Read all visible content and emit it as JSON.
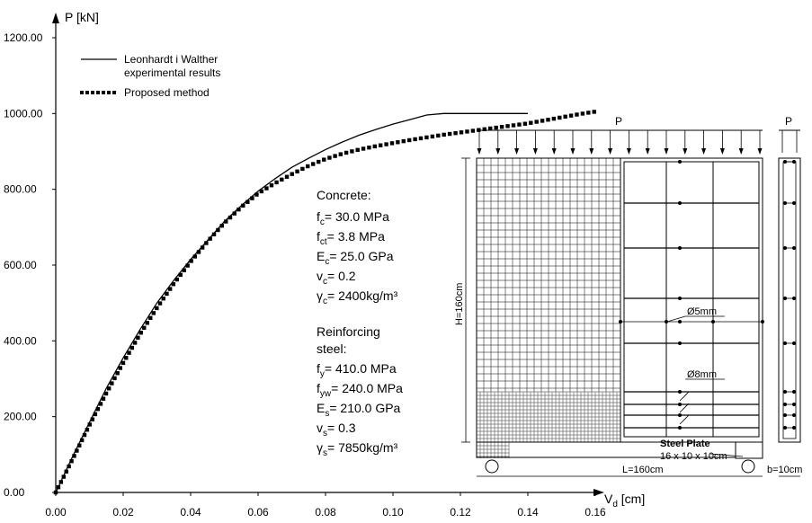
{
  "chart_data": {
    "type": "line",
    "ylabel": "P [kN]",
    "xlabel": "V",
    "xlabel_sub": "d",
    "xlabel_unit": " [cm]",
    "xlim": [
      0,
      0.16
    ],
    "ylim": [
      0,
      1200
    ],
    "x_ticks": [
      "0.00",
      "0.02",
      "0.04",
      "0.06",
      "0.08",
      "0.10",
      "0.12",
      "0.14",
      "0.16"
    ],
    "y_ticks": [
      "0.00",
      "200.00",
      "400.00",
      "600.00",
      "800.00",
      "1000.00",
      "1200.00"
    ],
    "grid": false,
    "legend": {
      "position": "top-left",
      "entries": [
        {
          "line1": "Leonhardt i Walther",
          "line2": "experimental results",
          "style": "solid"
        },
        {
          "line1": "Proposed method",
          "line2": "",
          "style": "dotted"
        }
      ]
    },
    "series": [
      {
        "name": "Leonhardt i Walther experimental results",
        "style": "solid",
        "x": [
          0,
          0.005,
          0.01,
          0.015,
          0.02,
          0.025,
          0.03,
          0.035,
          0.04,
          0.045,
          0.05,
          0.055,
          0.06,
          0.065,
          0.07,
          0.075,
          0.08,
          0.085,
          0.09,
          0.095,
          0.1,
          0.105,
          0.11,
          0.115,
          0.12,
          0.13,
          0.14
        ],
        "y": [
          0,
          95,
          185,
          275,
          355,
          430,
          500,
          560,
          615,
          665,
          715,
          757,
          795,
          828,
          858,
          882,
          905,
          925,
          943,
          958,
          972,
          984,
          996,
          1000,
          1000,
          1000,
          1000
        ]
      },
      {
        "name": "Proposed method",
        "style": "dotted",
        "x": [
          0,
          0.005,
          0.01,
          0.015,
          0.02,
          0.025,
          0.03,
          0.035,
          0.04,
          0.045,
          0.05,
          0.055,
          0.06,
          0.065,
          0.07,
          0.075,
          0.08,
          0.085,
          0.09,
          0.095,
          0.1,
          0.105,
          0.11,
          0.115,
          0.12,
          0.125,
          0.13,
          0.135,
          0.14,
          0.145,
          0.15,
          0.155,
          0.16
        ],
        "y": [
          0,
          88,
          178,
          262,
          342,
          418,
          487,
          551,
          609,
          662,
          711,
          753,
          789,
          816,
          840,
          862,
          880,
          894,
          905,
          914,
          922,
          930,
          937,
          944,
          950,
          956,
          962,
          968,
          974,
          982,
          990,
          998,
          1005
        ]
      }
    ],
    "annotations": {
      "concrete_title": "Concrete:",
      "fc": "= 30.0 MPa",
      "fct": "= 3.8 MPa",
      "Ec": "= 25.0 GPa",
      "vc": "= 0.2",
      "gc": "= 2400kg/m³",
      "steel_title_1": "Reinforcing",
      "steel_title_2": "steel:",
      "fy": "= 410.0 MPa",
      "fyw": "= 240.0 MPa",
      "Es": "= 210.0 GPa",
      "vs": "= 0.3",
      "gs": "= 7850kg/m³",
      "load_label": "P",
      "side_load_label": "P",
      "height_label": "H=160cm",
      "length_label": "L=160cm",
      "width_label": "b=10cm",
      "bar1_label": "Ø5mm",
      "bar2_label": "Ø8mm",
      "plate_label_1": "Steel Plate",
      "plate_label_2": "16 x 10 x 10cm"
    }
  }
}
